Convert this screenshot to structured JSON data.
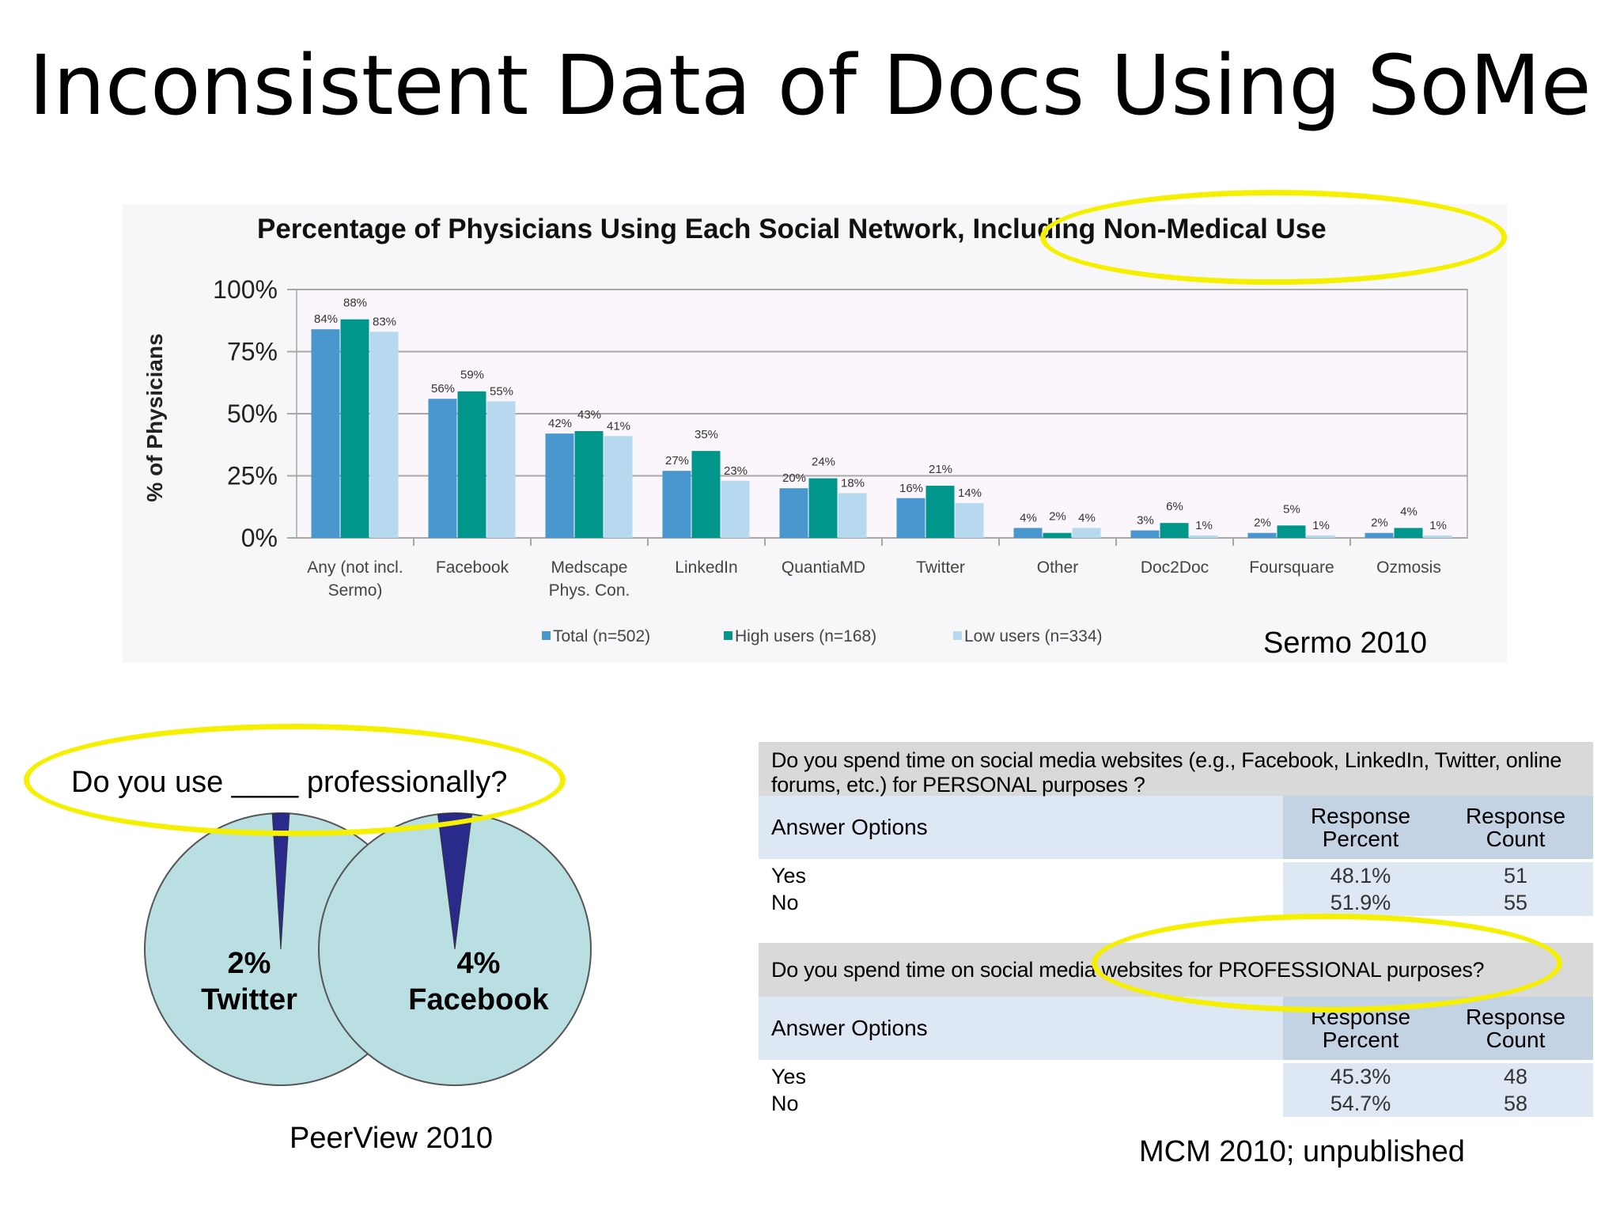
{
  "slide": {
    "title": "Inconsistent Data of Docs Using SoMe"
  },
  "colors": {
    "total": "#4a96cf",
    "high": "#00968c",
    "low": "#b7d9f0",
    "highlight": "#f5f000",
    "pie_fill": "#b9dfe2",
    "pie_slice": "#2a2a8a"
  },
  "chart_data": [
    {
      "type": "bar",
      "title": "Percentage of Physicians Using Each Social Network, Including Non-Medical Use",
      "ylabel": "% of Physicians",
      "xlabel": "",
      "ylim": [
        0,
        100
      ],
      "yticks": [
        "100%",
        "75%",
        "50%",
        "25%",
        "0%"
      ],
      "grid": true,
      "legend_position": "bottom",
      "categories": [
        [
          "Any (not incl.",
          "Sermo)"
        ],
        [
          "Facebook"
        ],
        [
          "Medscape",
          "Phys. Con."
        ],
        [
          "LinkedIn"
        ],
        [
          "QuantiaMD"
        ],
        [
          "Twitter"
        ],
        [
          "Other"
        ],
        [
          "Doc2Doc"
        ],
        [
          "Foursquare"
        ],
        [
          "Ozmosis"
        ]
      ],
      "series": [
        {
          "name": "Total (n=502)",
          "values": [
            84,
            56,
            42,
            27,
            20,
            16,
            4,
            3,
            2,
            2
          ]
        },
        {
          "name": "High users (n=168)",
          "values": [
            88,
            59,
            43,
            35,
            24,
            21,
            2,
            6,
            5,
            4
          ]
        },
        {
          "name": "Low users (n=334)",
          "values": [
            83,
            55,
            41,
            23,
            18,
            14,
            4,
            1,
            1,
            1
          ]
        }
      ],
      "source": "Sermo 2010"
    },
    {
      "type": "pie",
      "question": "Do you use ____ professionally?",
      "pies": [
        {
          "percent": 2,
          "pct_label": "2%",
          "label": "Twitter"
        },
        {
          "percent": 4,
          "pct_label": "4%",
          "label": "Facebook"
        }
      ],
      "source": "PeerView 2010"
    },
    {
      "type": "table",
      "source": "MCM 2010; unpublished",
      "tables": [
        {
          "question": "Do you spend time on social media websites (e.g., Facebook, LinkedIn, Twitter, online forums, etc.) for PERSONAL purposes ?",
          "headers": [
            "Answer Options",
            "Response Percent",
            "Response Count"
          ],
          "rows": [
            {
              "option": "Yes",
              "percent": "48.1%",
              "count": "51"
            },
            {
              "option": "No",
              "percent": "51.9%",
              "count": "55"
            }
          ]
        },
        {
          "question": "Do you spend time on social media websites for PROFESSIONAL purposes?",
          "headers": [
            "Answer Options",
            "Response Percent",
            "Response Count"
          ],
          "rows": [
            {
              "option": "Yes",
              "percent": "45.3%",
              "count": "48"
            },
            {
              "option": "No",
              "percent": "54.7%",
              "count": "58"
            }
          ]
        }
      ]
    }
  ]
}
